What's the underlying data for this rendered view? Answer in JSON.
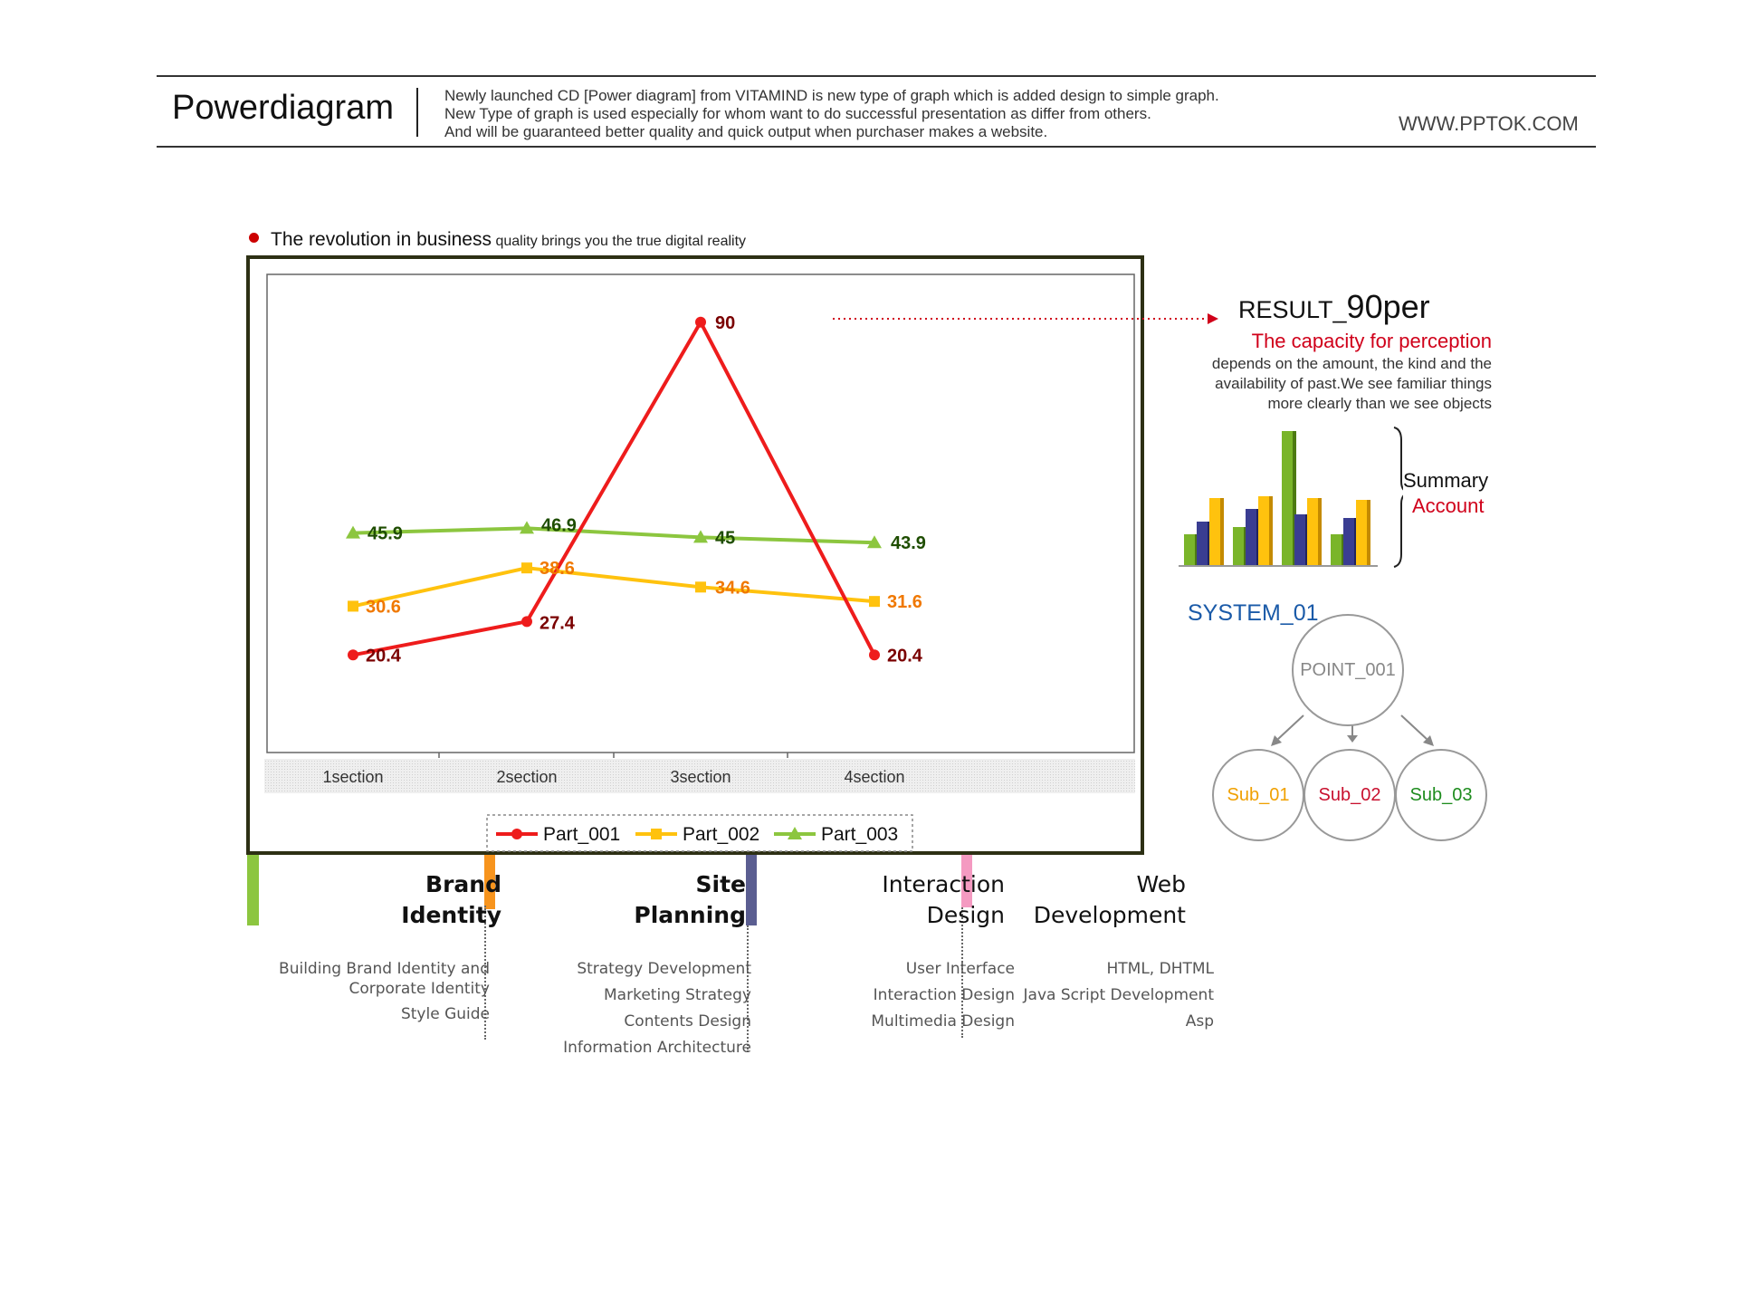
{
  "header": {
    "brand": "Powerdiagram",
    "desc": [
      "Newly launched CD [Power diagram] from VITAMIND is new type of graph which is added design to simple graph.",
      "New Type of graph is used especially for whom want to do successful presentation as differ from others.",
      "And will be guaranteed better quality and quick output when purchaser makes a website."
    ],
    "site": "WWW.PPTOK.COM"
  },
  "subtitle": {
    "strong": "The revolution in business",
    "weak": "quality brings you the true digital reality"
  },
  "chart_data": {
    "type": "line",
    "categories": [
      "1section",
      "2section",
      "3section",
      "4section"
    ],
    "series": [
      {
        "name": "Part_001",
        "values": [
          20.4,
          27.4,
          90,
          20.4
        ],
        "color": "#ee1c1c",
        "label_color": "#7a0000",
        "marker": "circle"
      },
      {
        "name": "Part_002",
        "values": [
          30.6,
          38.6,
          34.6,
          31.6
        ],
        "color": "#ffc20e",
        "label_color": "#f07800",
        "marker": "square"
      },
      {
        "name": "Part_003",
        "values": [
          45.9,
          46.9,
          45,
          43.9
        ],
        "color": "#8cc63f",
        "label_color": "#1e4d00",
        "marker": "triangle"
      }
    ],
    "ylim": [
      0,
      100
    ],
    "grid": false,
    "legend": "bottom",
    "title": "",
    "xlabel": "",
    "ylabel": ""
  },
  "result": {
    "prefix": "RESULT_",
    "value": "90per",
    "red_line": "The capacity for perception",
    "body": [
      "depends on the amount, the kind and the",
      "availability of past.We see familiar things",
      "more clearly than we see objects"
    ],
    "summary": [
      "Summary",
      "Account"
    ]
  },
  "system": {
    "title": "SYSTEM_01",
    "point": "POINT_001",
    "subs": [
      "Sub_01",
      "Sub_02",
      "Sub_03"
    ],
    "sub_colors": [
      "#f0a000",
      "#c8102e",
      "#1e8c1e"
    ]
  },
  "categories": [
    {
      "title": [
        "Brand",
        "Identity"
      ],
      "items": [
        "Building Brand Identity and",
        "Corporate Identity",
        "Style Guide"
      ],
      "color": "#f7941d"
    },
    {
      "title": [
        "Site",
        "Planning"
      ],
      "items": [
        "Strategy Development",
        "Marketing Strategy",
        "Contents Design",
        "Information Architecture"
      ],
      "color": "#5b5e91"
    },
    {
      "title": [
        "Interaction",
        "Design"
      ],
      "items": [
        "User Interface",
        "Interaction Design",
        "Multimedia Design"
      ],
      "color": "#f49ac1"
    },
    {
      "title": [
        "Web",
        "Development"
      ],
      "items": [
        "HTML, DHTML",
        "Java Script Development",
        "Asp"
      ],
      "color": ""
    }
  ],
  "colors": {
    "left_bar": "#8cc63f",
    "accent_red": "#d0001a",
    "system_blue": "#1a5aa8"
  }
}
